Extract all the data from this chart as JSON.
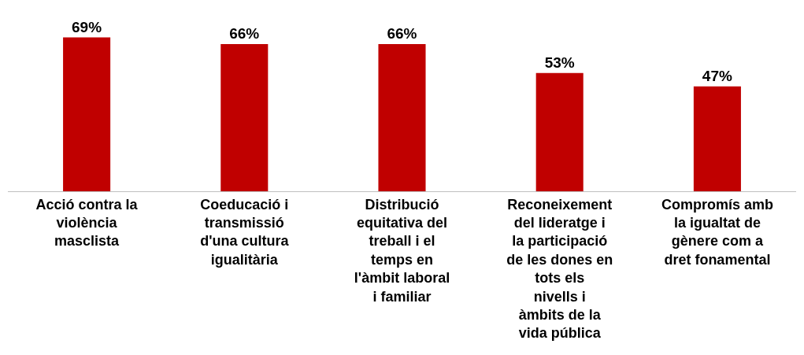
{
  "chart_data": {
    "type": "bar",
    "categories": [
      "Acció contra la violència masclista",
      "Coeducació i transmissió d'una cultura igualitària",
      "Distribució equitativa del treball i el temps en l'àmbit laboral i familiar",
      "Reconeixement del lideratge i la participació de les dones en tots els nivells i àmbits de la vida pública",
      "Compromís amb la igualtat de gènere com a dret fonamental"
    ],
    "values": [
      69,
      66,
      66,
      53,
      47
    ],
    "value_labels": [
      "69%",
      "66%",
      "66%",
      "53%",
      "47%"
    ],
    "color": "#c00000",
    "tick_labels": "x"
  }
}
